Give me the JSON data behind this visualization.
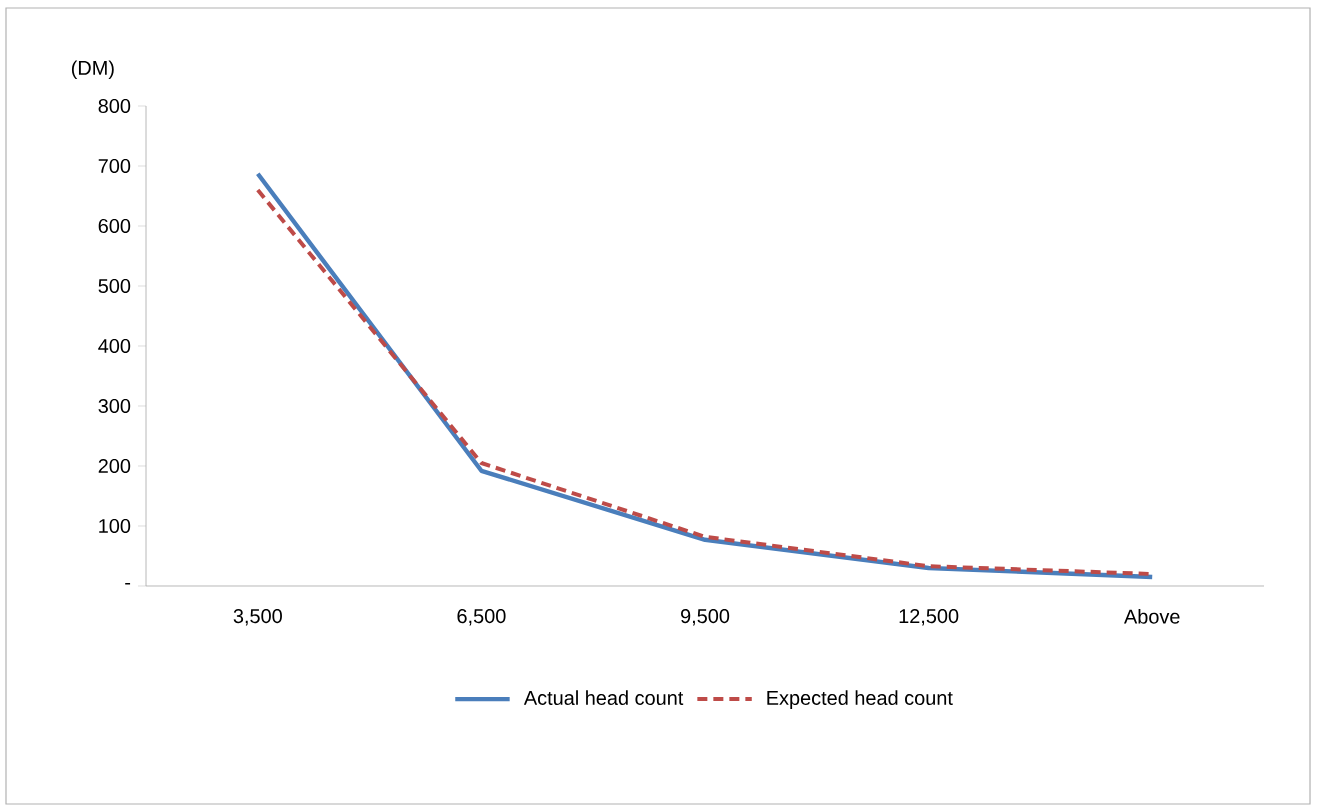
{
  "chart_data": {
    "type": "line",
    "ylabel": "(DM)",
    "categories": [
      "3,500",
      "6,500",
      "9,500",
      "12,500",
      "Above"
    ],
    "series": [
      {
        "name": "Actual head count",
        "color": "#4a7ebb",
        "line_style": "solid",
        "values": [
          687,
          192,
          77,
          30,
          15
        ]
      },
      {
        "name": "Expected head count",
        "color": "#be4b48",
        "line_style": "dashed",
        "values": [
          660,
          205,
          82,
          33,
          20
        ]
      }
    ],
    "ylim": [
      0,
      800
    ],
    "yticks": [
      {
        "value": 0,
        "label": "-"
      },
      100,
      200,
      300,
      400,
      500,
      600,
      700,
      800
    ],
    "grid": false,
    "legend": "bottom",
    "marker": "none"
  }
}
